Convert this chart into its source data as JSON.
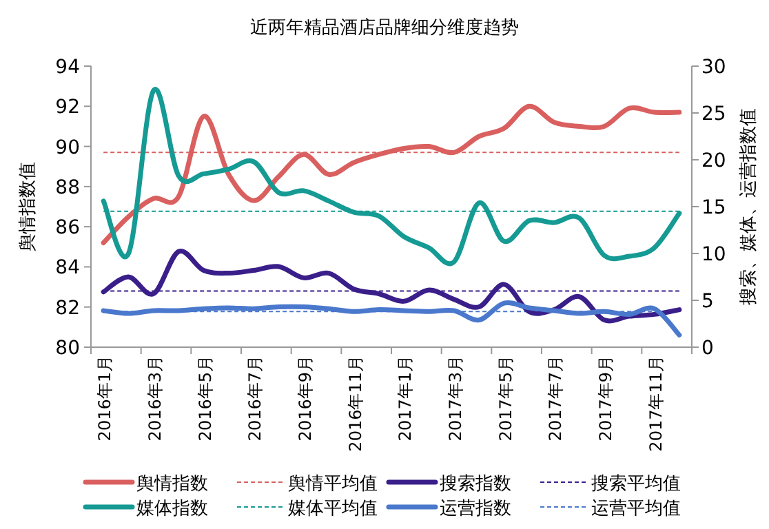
{
  "chart_data": {
    "type": "line",
    "title": "近两年精品酒店品牌细分维度趋势",
    "categories": [
      "2016年1月",
      null,
      "2016年3月",
      null,
      "2016年5月",
      null,
      "2016年7月",
      null,
      "2016年9月",
      null,
      "2016年11月",
      null,
      "2017年1月",
      null,
      "2017年3月",
      null,
      "2017年5月",
      null,
      "2017年7月",
      null,
      "2017年9月",
      null,
      "2017年11月",
      null
    ],
    "ylabel": "舆情指数值",
    "y2label": "搜索、媒体、运营指数值",
    "ylim": [
      80,
      94
    ],
    "yticks": [
      80,
      82,
      84,
      86,
      88,
      90,
      92,
      94
    ],
    "y2lim": [
      0,
      30
    ],
    "y2ticks": [
      0,
      5,
      10,
      15,
      20,
      25,
      30
    ],
    "legend": "bottom",
    "series": [
      {
        "name": "舆情指数",
        "color": "#d9605f",
        "values": [
          85.2,
          86.5,
          87.4,
          87.5,
          91.5,
          88.6,
          87.3,
          88.5,
          89.6,
          88.6,
          89.2,
          89.6,
          89.9,
          90.0,
          89.7,
          90.5,
          90.9,
          92.0,
          91.2,
          91.0,
          91.0,
          91.9,
          91.7,
          91.7
        ]
      },
      {
        "name": "搜索指数",
        "color": "#3a1f8a",
        "axis": "y2",
        "values": [
          5.9,
          7.5,
          5.7,
          10.2,
          8.2,
          7.9,
          8.2,
          8.6,
          7.4,
          7.9,
          6.2,
          5.7,
          4.9,
          6.1,
          5.1,
          4.3,
          6.7,
          3.8,
          4.0,
          5.4,
          2.9,
          3.3,
          3.5,
          4.0
        ]
      },
      {
        "name": "媒体指数",
        "color": "#159a94",
        "axis": "y2",
        "values": [
          15.6,
          10.0,
          27.4,
          18.3,
          18.5,
          19.0,
          19.8,
          16.5,
          16.7,
          15.6,
          14.4,
          14.0,
          11.8,
          10.6,
          9.1,
          15.4,
          11.3,
          13.5,
          13.3,
          13.8,
          9.8,
          9.7,
          10.6,
          14.3
        ]
      },
      {
        "name": "运营指数",
        "color": "#4a78cc",
        "axis": "y2",
        "values": [
          3.9,
          3.6,
          3.9,
          3.9,
          4.1,
          4.2,
          4.1,
          4.3,
          4.3,
          4.1,
          3.8,
          4.0,
          3.9,
          3.8,
          3.9,
          2.9,
          4.7,
          4.2,
          3.9,
          3.6,
          3.8,
          3.5,
          4.1,
          1.3
        ]
      }
    ],
    "ref_lines": [
      {
        "axis": "y",
        "value": 89.7,
        "label": "舆情平均值",
        "color": "#d9605f",
        "line_style": "dashed"
      },
      {
        "axis": "y2",
        "value": 6.0,
        "label": "搜索平均值",
        "color": "#3a1f8a",
        "line_style": "dashed"
      },
      {
        "axis": "y2",
        "value": 14.5,
        "label": "媒体平均值",
        "color": "#159a94",
        "line_style": "dashed"
      },
      {
        "axis": "y2",
        "value": 3.8,
        "label": "运营平均值",
        "color": "#4a78cc",
        "line_style": "dashed"
      }
    ]
  }
}
